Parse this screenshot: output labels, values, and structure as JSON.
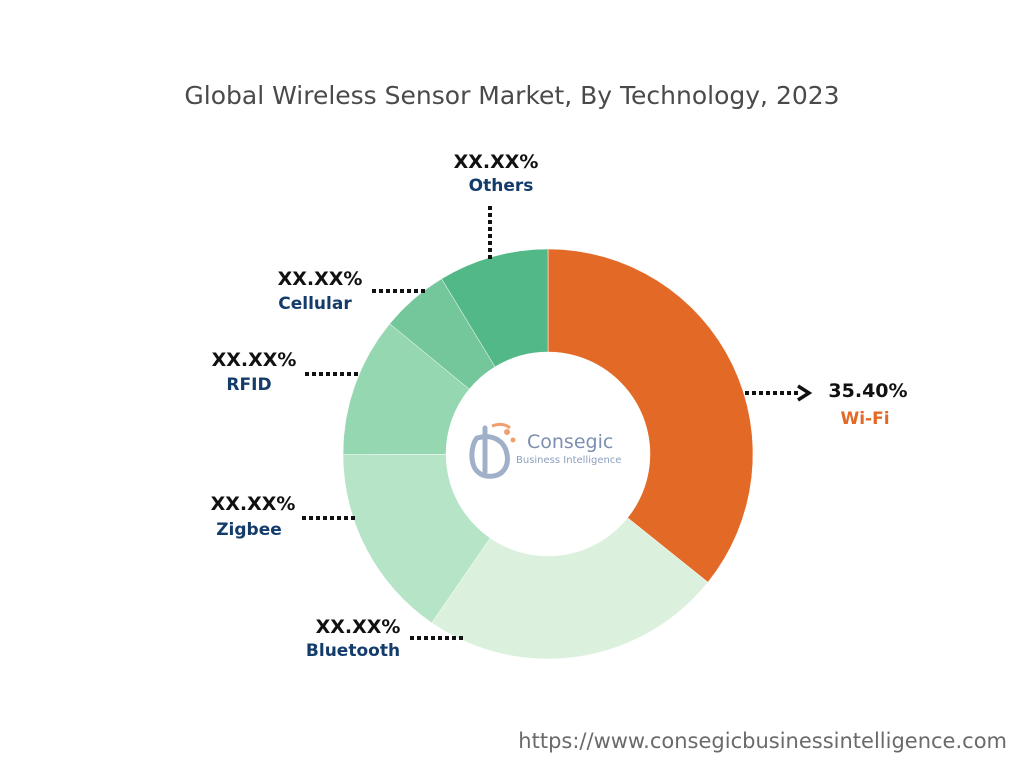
{
  "chart_data": {
    "type": "pie",
    "variant": "donut",
    "title": "Global Wireless Sensor Market, By Technology, 2023",
    "slices": [
      {
        "label": "Wi-Fi",
        "value_label": "35.40%",
        "value": 35.4,
        "color": "#e36a26",
        "label_color": "#e36a26"
      },
      {
        "label": "Bluetooth",
        "value_label": "XX.XX%",
        "value": 23.6,
        "color": "#dbf1dd",
        "label_color": "#143c6a"
      },
      {
        "label": "Zigbee",
        "value_label": "XX.XX%",
        "value": 15.2,
        "color": "#b5e4c6",
        "label_color": "#143c6a"
      },
      {
        "label": "RFID",
        "value_label": "XX.XX%",
        "value": 10.9,
        "color": "#95d7b0",
        "label_color": "#143c6a"
      },
      {
        "label": "Cellular",
        "value_label": "XX.XX%",
        "value": 5.3,
        "color": "#74c79b",
        "label_color": "#143c6a"
      },
      {
        "label": "Others",
        "value_label": "XX.XX%",
        "value": 8.6,
        "color": "#52b888",
        "label_color": "#143c6a"
      }
    ],
    "start_position": "12 o'clock",
    "direction": "clockwise"
  },
  "logo": {
    "name": "Consegic",
    "tagline": "Business Intelligence"
  },
  "footer": {
    "url": "https://www.consegicbusinessintelligence.com"
  }
}
